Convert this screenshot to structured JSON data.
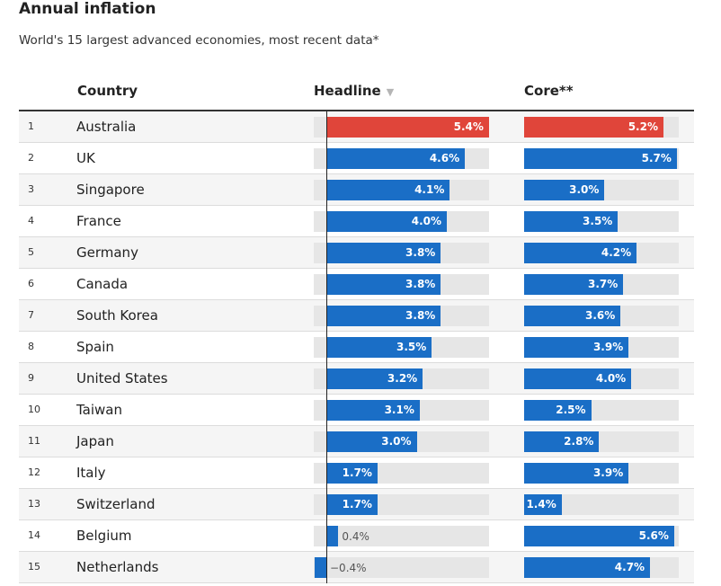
{
  "title": "Annual inflation",
  "subtitle": "World's 15 largest advanced economies, most recent data*",
  "columns": {
    "country": "Country",
    "headline": "Headline",
    "core": "Core**"
  },
  "sort_icon": "sort-down-triangle-icon",
  "colors": {
    "highlight": "#e0453a",
    "bar": "#1a6ec6",
    "track": "#e6e6e6"
  },
  "chart_data": {
    "type": "table",
    "rows": [
      {
        "rank": "1",
        "country": "Australia",
        "headline": 5.4,
        "headline_label": "5.4%",
        "core": 5.2,
        "core_label": "5.2%",
        "highlight": true
      },
      {
        "rank": "2",
        "country": "UK",
        "headline": 4.6,
        "headline_label": "4.6%",
        "core": 5.7,
        "core_label": "5.7%"
      },
      {
        "rank": "3",
        "country": "Singapore",
        "headline": 4.1,
        "headline_label": "4.1%",
        "core": 3.0,
        "core_label": "3.0%"
      },
      {
        "rank": "4",
        "country": "France",
        "headline": 4.0,
        "headline_label": "4.0%",
        "core": 3.5,
        "core_label": "3.5%"
      },
      {
        "rank": "5",
        "country": "Germany",
        "headline": 3.8,
        "headline_label": "3.8%",
        "core": 4.2,
        "core_label": "4.2%"
      },
      {
        "rank": "6",
        "country": "Canada",
        "headline": 3.8,
        "headline_label": "3.8%",
        "core": 3.7,
        "core_label": "3.7%"
      },
      {
        "rank": "7",
        "country": "South Korea",
        "headline": 3.8,
        "headline_label": "3.8%",
        "core": 3.6,
        "core_label": "3.6%"
      },
      {
        "rank": "8",
        "country": "Spain",
        "headline": 3.5,
        "headline_label": "3.5%",
        "core": 3.9,
        "core_label": "3.9%"
      },
      {
        "rank": "9",
        "country": "United States",
        "headline": 3.2,
        "headline_label": "3.2%",
        "core": 4.0,
        "core_label": "4.0%"
      },
      {
        "rank": "10",
        "country": "Taiwan",
        "headline": 3.1,
        "headline_label": "3.1%",
        "core": 2.5,
        "core_label": "2.5%"
      },
      {
        "rank": "11",
        "country": "Japan",
        "headline": 3.0,
        "headline_label": "3.0%",
        "core": 2.8,
        "core_label": "2.8%"
      },
      {
        "rank": "12",
        "country": "Italy",
        "headline": 1.7,
        "headline_label": "1.7%",
        "core": 3.9,
        "core_label": "3.9%"
      },
      {
        "rank": "13",
        "country": "Switzerland",
        "headline": 1.7,
        "headline_label": "1.7%",
        "core": 1.4,
        "core_label": "1.4%"
      },
      {
        "rank": "14",
        "country": "Belgium",
        "headline": 0.4,
        "headline_label": "0.4%",
        "core": 5.6,
        "core_label": "5.6%"
      },
      {
        "rank": "15",
        "country": "Netherlands",
        "headline": -0.4,
        "headline_label": "−0.4%",
        "core": 4.7,
        "core_label": "4.7%"
      }
    ]
  }
}
